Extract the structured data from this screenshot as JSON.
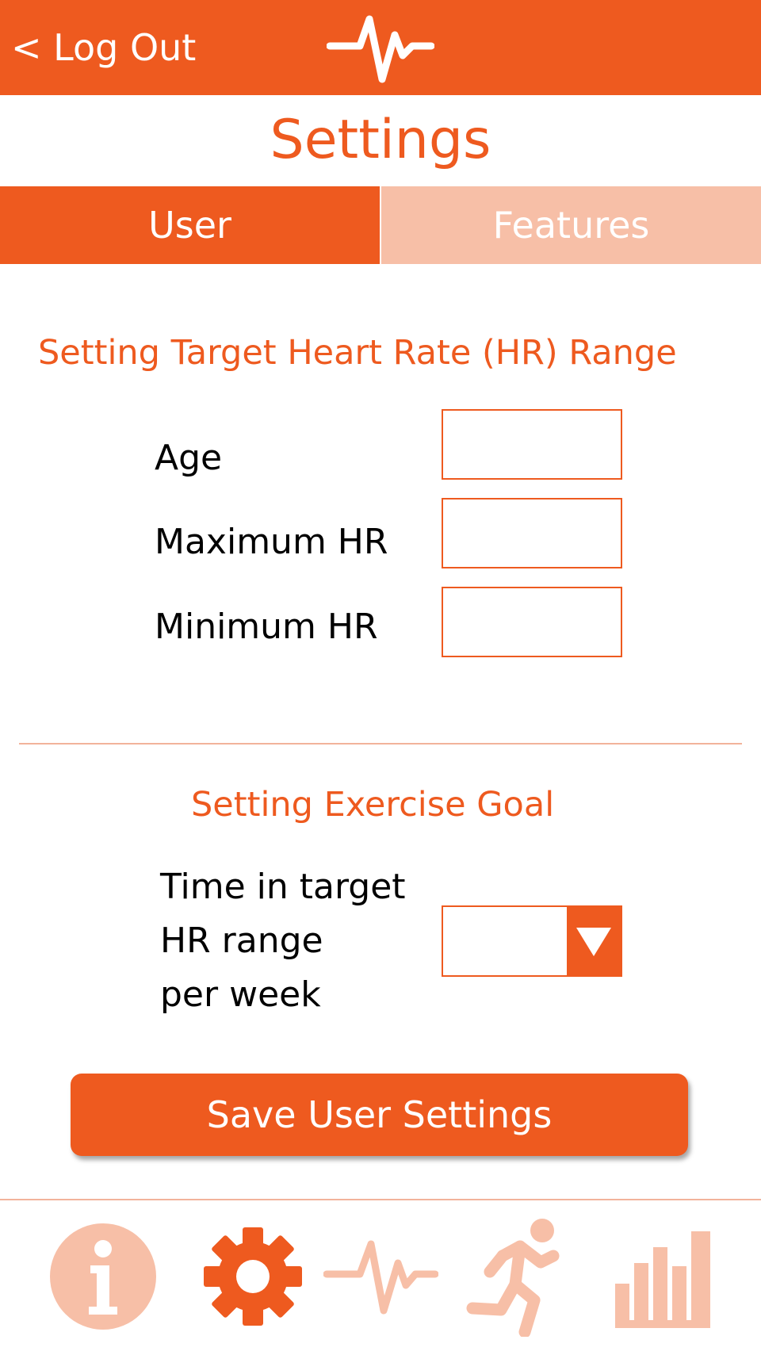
{
  "header": {
    "logout_label": "< Log Out",
    "logo_icon": "heartbeat-icon"
  },
  "page_title": "Settings",
  "tabs": [
    {
      "label": "User",
      "active": true
    },
    {
      "label": "Features",
      "active": false
    }
  ],
  "hr_section": {
    "title": "Setting Target Heart Rate (HR) Range",
    "fields": [
      {
        "label": "Age",
        "value": ""
      },
      {
        "label": "Maximum HR",
        "value": ""
      },
      {
        "label": "Minimum HR",
        "value": ""
      }
    ]
  },
  "goal_section": {
    "title": "Setting Exercise Goal",
    "label_lines": [
      "Time in target",
      "HR range",
      "per week"
    ],
    "selected_value": ""
  },
  "save_button_label": "Save User Settings",
  "bottom_nav": [
    {
      "icon": "info-icon",
      "active": false
    },
    {
      "icon": "gear-icon",
      "active": true
    },
    {
      "icon": "heartbeat-icon",
      "active": false
    },
    {
      "icon": "running-person-icon",
      "active": false
    },
    {
      "icon": "bar-chart-icon",
      "active": false
    }
  ],
  "colors": {
    "accent": "#ee5a1f",
    "accent_light": "#f7bfa7",
    "divider": "#f2b39b"
  }
}
